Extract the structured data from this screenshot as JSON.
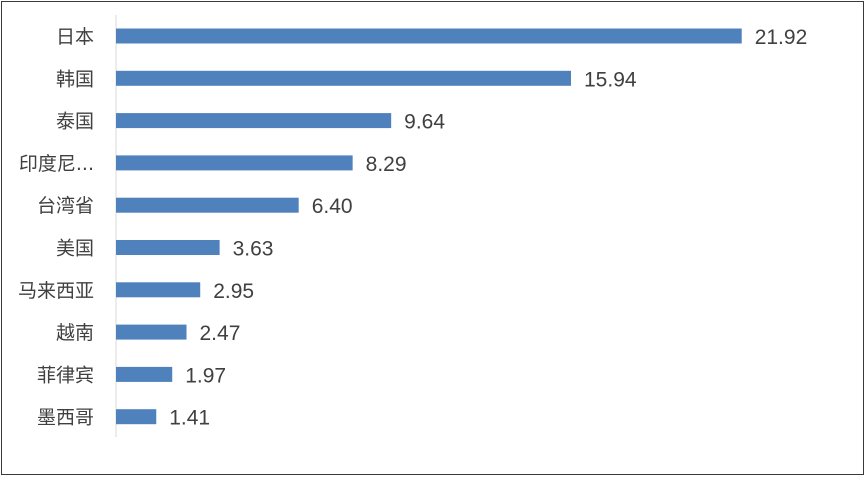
{
  "chart_data": {
    "type": "bar",
    "orientation": "horizontal",
    "categories": [
      "日本",
      "韩国",
      "泰国",
      "印度尼...",
      "台湾省",
      "美国",
      "马来西亚",
      "越南",
      "菲律宾",
      "墨西哥"
    ],
    "values": [
      21.92,
      15.94,
      9.64,
      8.29,
      6.4,
      3.63,
      2.95,
      2.47,
      1.97,
      1.41
    ],
    "value_labels": [
      "21.92",
      "15.94",
      "9.64",
      "8.29",
      "6.40",
      "3.63",
      "2.95",
      "2.47",
      "1.97",
      "1.41"
    ],
    "title": "",
    "xlabel": "",
    "ylabel": "",
    "xlim": [
      0,
      22
    ],
    "grid": false,
    "legend": "none",
    "bar_color": "#4f81bd"
  }
}
